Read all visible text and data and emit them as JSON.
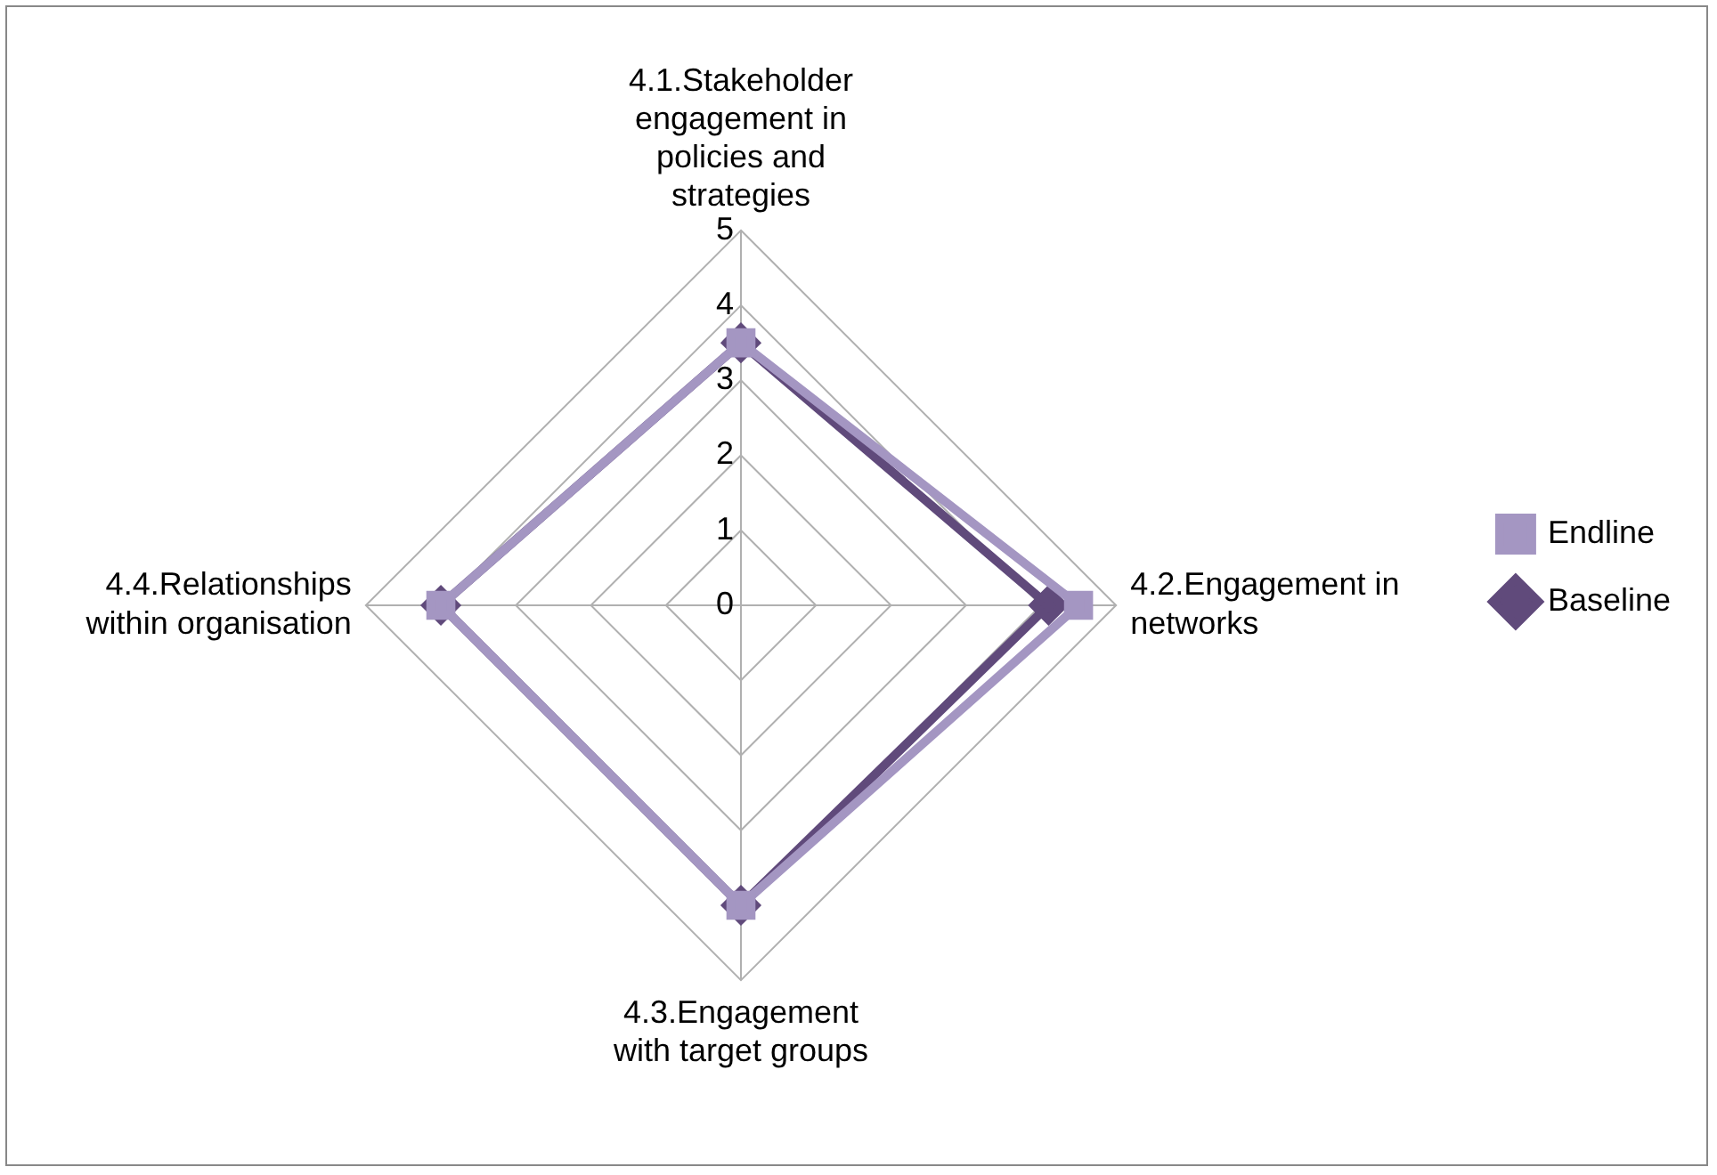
{
  "chart_data": {
    "type": "radar",
    "categories": [
      "4.1.Stakeholder engagement in policies and strategies",
      "4.2.Engagement in networks",
      "4.3.Engagement with target groups",
      "4.4.Relationships within organisation"
    ],
    "series": [
      {
        "name": "Baseline",
        "color": "#604a7b",
        "values": [
          3.5,
          4.1,
          4.0,
          4.0
        ],
        "marker": "diamond"
      },
      {
        "name": "Endline",
        "color": "#a496c2",
        "values": [
          3.5,
          4.5,
          4.0,
          4.0
        ],
        "marker": "square"
      }
    ],
    "ylim": [
      0,
      5
    ],
    "yticks": [
      0,
      1,
      2,
      3,
      4,
      5
    ],
    "grid": true,
    "legend": "right"
  }
}
